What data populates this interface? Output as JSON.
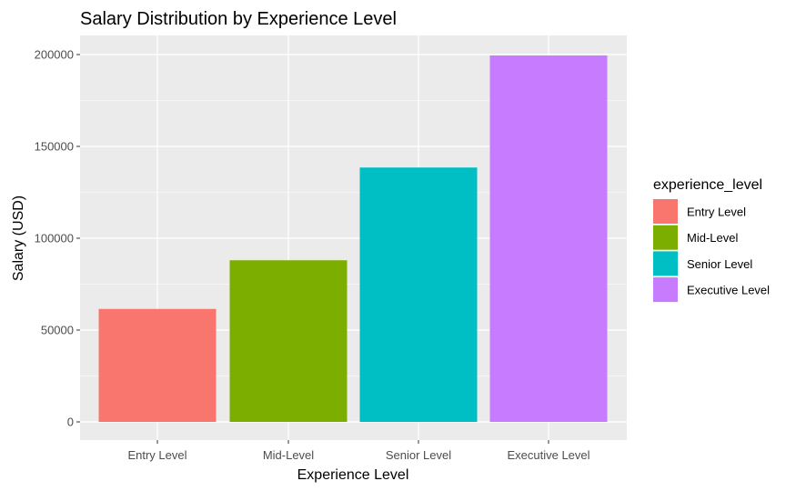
{
  "chart_data": {
    "type": "bar",
    "title": "Salary Distribution by Experience Level",
    "xlabel": "Experience Level",
    "ylabel": "Salary (USD)",
    "categories": [
      "Entry Level",
      "Mid-Level",
      "Senior Level",
      "Executive Level"
    ],
    "values": [
      61500,
      88000,
      138500,
      199500
    ],
    "ylim": [
      -10000,
      210000
    ],
    "yticks": [
      0,
      50000,
      100000,
      150000,
      200000
    ],
    "ytick_labels": [
      "0",
      "50000",
      "100000",
      "150000",
      "200000"
    ],
    "colors": [
      "#F8766D",
      "#7CAE00",
      "#00BFC4",
      "#C77CFF"
    ],
    "grid": true,
    "legend": {
      "title": "experience_level",
      "position": "right",
      "entries": [
        "Entry Level",
        "Mid-Level",
        "Senior Level",
        "Executive Level"
      ]
    },
    "panel_background": "#EBEBEB",
    "grid_color": "#FFFFFF"
  }
}
